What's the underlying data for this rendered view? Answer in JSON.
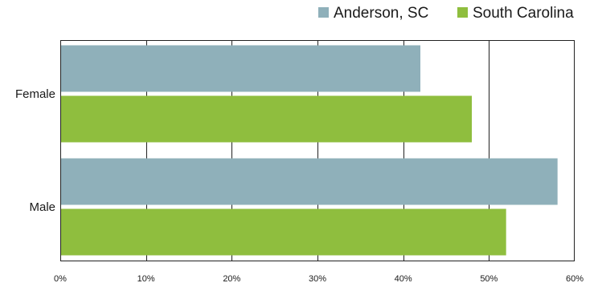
{
  "chart_data": {
    "type": "bar",
    "orientation": "horizontal",
    "categories": [
      "Female",
      "Male"
    ],
    "series": [
      {
        "name": "Anderson, SC",
        "color": "#8fb0ba",
        "values": [
          42,
          58
        ]
      },
      {
        "name": "South Carolina",
        "color": "#8fbe3e",
        "values": [
          48,
          52
        ]
      }
    ],
    "xlim": [
      0,
      60
    ],
    "xticks": [
      "0%",
      "10%",
      "20%",
      "30%",
      "40%",
      "50%",
      "60%"
    ],
    "grid": true,
    "legend_position": "top-right"
  }
}
